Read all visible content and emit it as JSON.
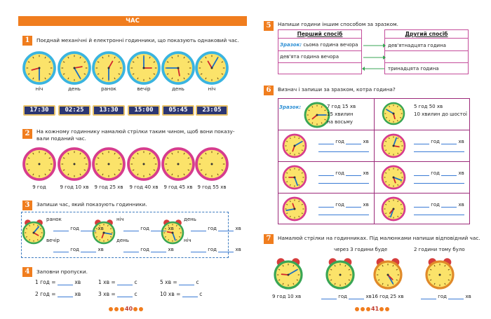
{
  "left": {
    "banner": "ЧАС",
    "t1": {
      "num": "1",
      "text": "Поєднай механічні й електронні годинники, що показують однаковий час.",
      "labels": [
        "ніч",
        "день",
        "ранок",
        "вечір",
        "день",
        "ніч"
      ],
      "digital": [
        "17:30",
        "02:25",
        "13:30",
        "15:00",
        "05:45",
        "23:05"
      ]
    },
    "t2": {
      "num": "2",
      "text1": "На кожному годиннику намалюй стрілки таким чином, щоб вони показу-",
      "text2": "вали поданий час.",
      "labels": [
        "9 год",
        "9 год 10 хв",
        "9 год 25 хв",
        "9 год 40 хв",
        "9 год 45 хв",
        "9 год 55 хв"
      ]
    },
    "t3": {
      "num": "3",
      "text": "Запиши час, який показують годинники.",
      "tags": [
        [
          "ранок",
          "вечір"
        ],
        [
          "ніч",
          "день"
        ],
        [
          "день",
          "ніч"
        ]
      ],
      "unit_h": "год",
      "unit_m": "хв"
    },
    "t4": {
      "num": "4",
      "text": "Заповни пропуски.",
      "rows": [
        [
          "1 год =",
          "хв",
          "1 хв =",
          "с",
          "5 хв =",
          "с"
        ],
        [
          "2 год =",
          "хв",
          "3 хв =",
          "с",
          "10 хв =",
          "с"
        ]
      ]
    },
    "page": "40"
  },
  "right": {
    "t5": {
      "num": "5",
      "text": "Напиши години іншим способом за зразком.",
      "head1": "Перший спосіб",
      "head2": "Другий спосіб",
      "sample_tag": "Зразок:",
      "sample_text": "сьома година вечора",
      "r2": "дев'ята година вечора",
      "c1": "дев'ятнадцята година",
      "c3": "тринадцята година"
    },
    "t6": {
      "num": "6",
      "text": "Визнач і запиши за зразком, котра година?",
      "sample_tag": "Зразок:",
      "s1": [
        "7 год 15 хв",
        "15 хвилин",
        "на восьму"
      ],
      "s2": [
        "5 год 50 хв",
        "10 хвилин до шостої"
      ],
      "unit_h": "год",
      "unit_m": "хв"
    },
    "t7": {
      "num": "7",
      "text": "Намалюй стрілки на годинниках. Під малюнками напиши відповідний час.",
      "cap1": "через 3 години буде",
      "cap2": "2 години тому було",
      "labels": [
        "9 год 10 хв",
        "год",
        "хв",
        "16 год 25 хв",
        "год",
        "хв"
      ]
    },
    "page": "41"
  },
  "colors": {
    "orange": "#f07d1e",
    "pink": "#d63c8e",
    "green": "#3aa655",
    "clockface": "#fbe36a",
    "purple": "#9c2a7a",
    "blue": "#2d8fd4"
  }
}
